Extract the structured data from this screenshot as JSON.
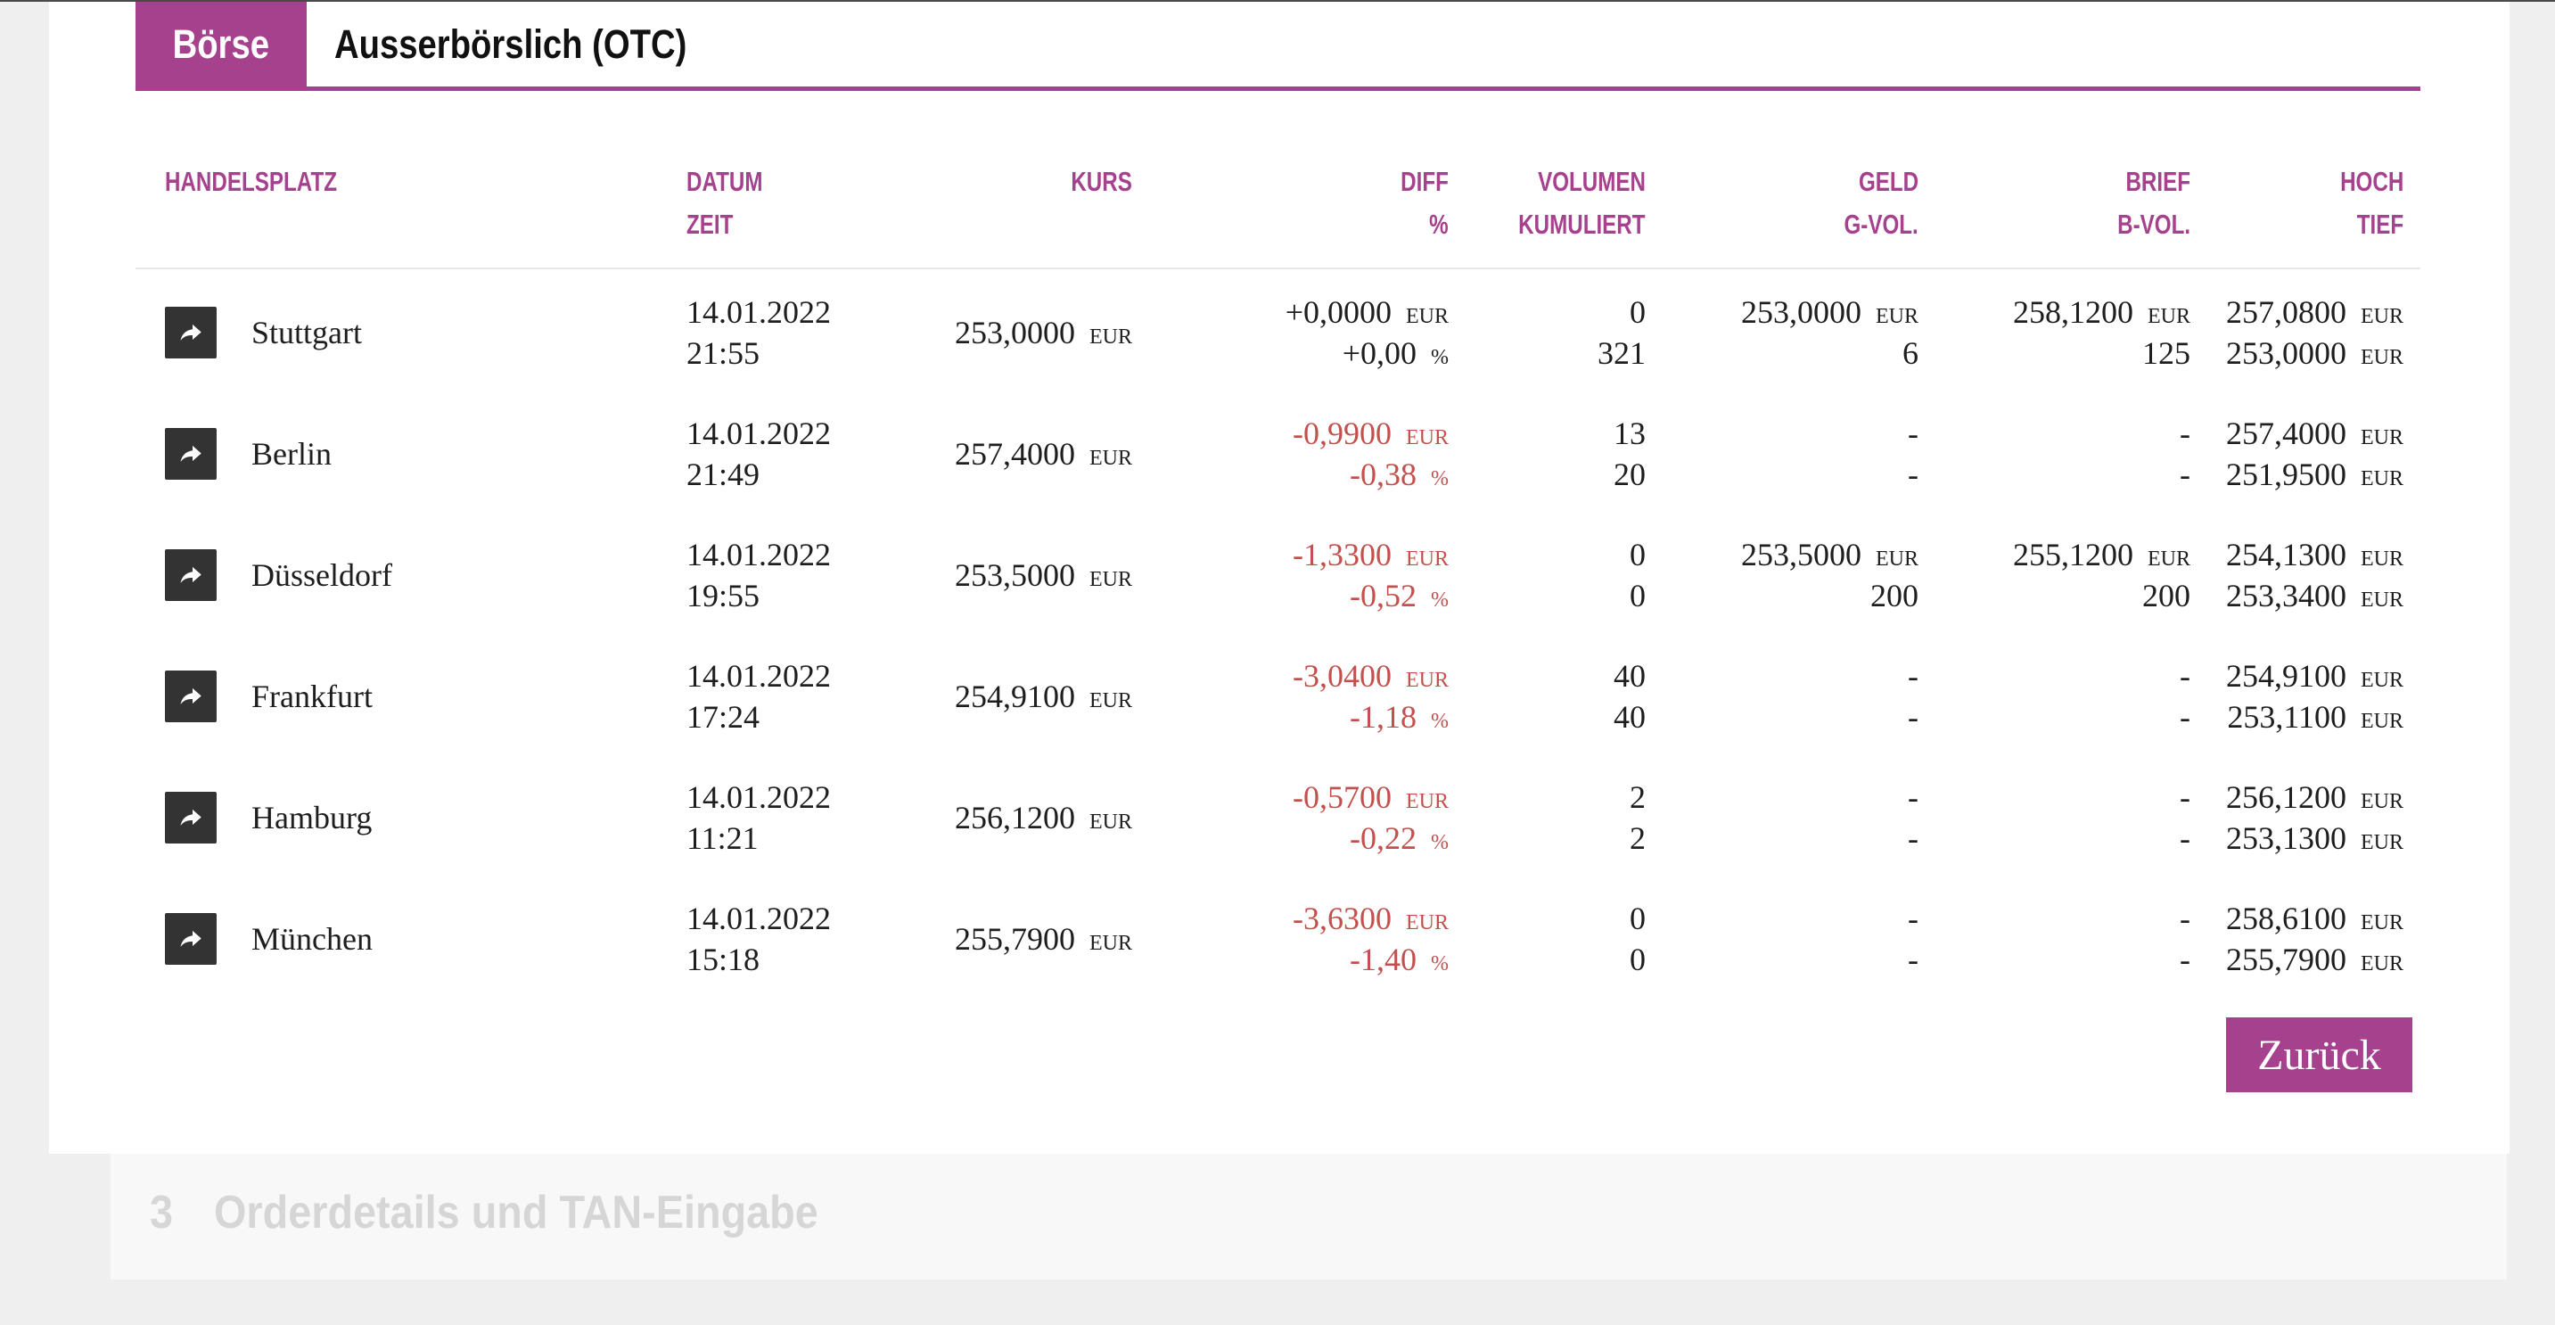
{
  "tabs": {
    "active": "Börse",
    "inactive": "Ausserbörslich (OTC)"
  },
  "columns": [
    {
      "line1": "HANDELSPLATZ"
    },
    {
      "line1": "DATUM",
      "line2": "ZEIT"
    },
    {
      "line1": "KURS"
    },
    {
      "line1": "DIFF",
      "line2": "%"
    },
    {
      "line1": "VOLUMEN",
      "line2": "KUMULIERT"
    },
    {
      "line1": "GELD",
      "line2": "G-VOL."
    },
    {
      "line1": "BRIEF",
      "line2": "B-VOL."
    },
    {
      "line1": "HOCH",
      "line2": "TIEF"
    }
  ],
  "currency": "EUR",
  "percent_sign": "%",
  "rows": [
    {
      "venue": "Stuttgart",
      "date": "14.01.2022",
      "time": "21:55",
      "price": "253,0000",
      "diff": "+0,0000",
      "diff_pct": "+0,00",
      "volume": "0",
      "volume_cumulative": "321",
      "bid": "253,0000",
      "bid_volume": "6",
      "ask": "258,1200",
      "ask_volume": "125",
      "high": "257,0800",
      "low": "253,0000"
    },
    {
      "venue": "Berlin",
      "date": "14.01.2022",
      "time": "21:49",
      "price": "257,4000",
      "diff": "-0,9900",
      "diff_pct": "-0,38",
      "volume": "13",
      "volume_cumulative": "20",
      "bid": "-",
      "bid_volume": "-",
      "ask": "-",
      "ask_volume": "-",
      "high": "257,4000",
      "low": "251,9500"
    },
    {
      "venue": "Düsseldorf",
      "date": "14.01.2022",
      "time": "19:55",
      "price": "253,5000",
      "diff": "-1,3300",
      "diff_pct": "-0,52",
      "volume": "0",
      "volume_cumulative": "0",
      "bid": "253,5000",
      "bid_volume": "200",
      "ask": "255,1200",
      "ask_volume": "200",
      "high": "254,1300",
      "low": "253,3400"
    },
    {
      "venue": "Frankfurt",
      "date": "14.01.2022",
      "time": "17:24",
      "price": "254,9100",
      "diff": "-3,0400",
      "diff_pct": "-1,18",
      "volume": "40",
      "volume_cumulative": "40",
      "bid": "-",
      "bid_volume": "-",
      "ask": "-",
      "ask_volume": "-",
      "high": "254,9100",
      "low": "253,1100"
    },
    {
      "venue": "Hamburg",
      "date": "14.01.2022",
      "time": "11:21",
      "price": "256,1200",
      "diff": "-0,5700",
      "diff_pct": "-0,22",
      "volume": "2",
      "volume_cumulative": "2",
      "bid": "-",
      "bid_volume": "-",
      "ask": "-",
      "ask_volume": "-",
      "high": "256,1200",
      "low": "253,1300"
    },
    {
      "venue": "München",
      "date": "14.01.2022",
      "time": "15:18",
      "price": "255,7900",
      "diff": "-3,6300",
      "diff_pct": "-1,40",
      "volume": "0",
      "volume_cumulative": "0",
      "bid": "-",
      "bid_volume": "-",
      "ask": "-",
      "ask_volume": "-",
      "high": "258,6100",
      "low": "255,7900"
    }
  ],
  "back_button": "Zurück",
  "next_step": {
    "number": "3",
    "title": "Orderdetails und TAN-Eingabe"
  },
  "icons": {
    "row_action": "share-arrow-icon"
  },
  "colors": {
    "accent": "#a6418e",
    "negative": "#c4504e",
    "text": "#1e1e1e",
    "icon_bg": "#333333",
    "step_text": "#d6d6d6"
  }
}
